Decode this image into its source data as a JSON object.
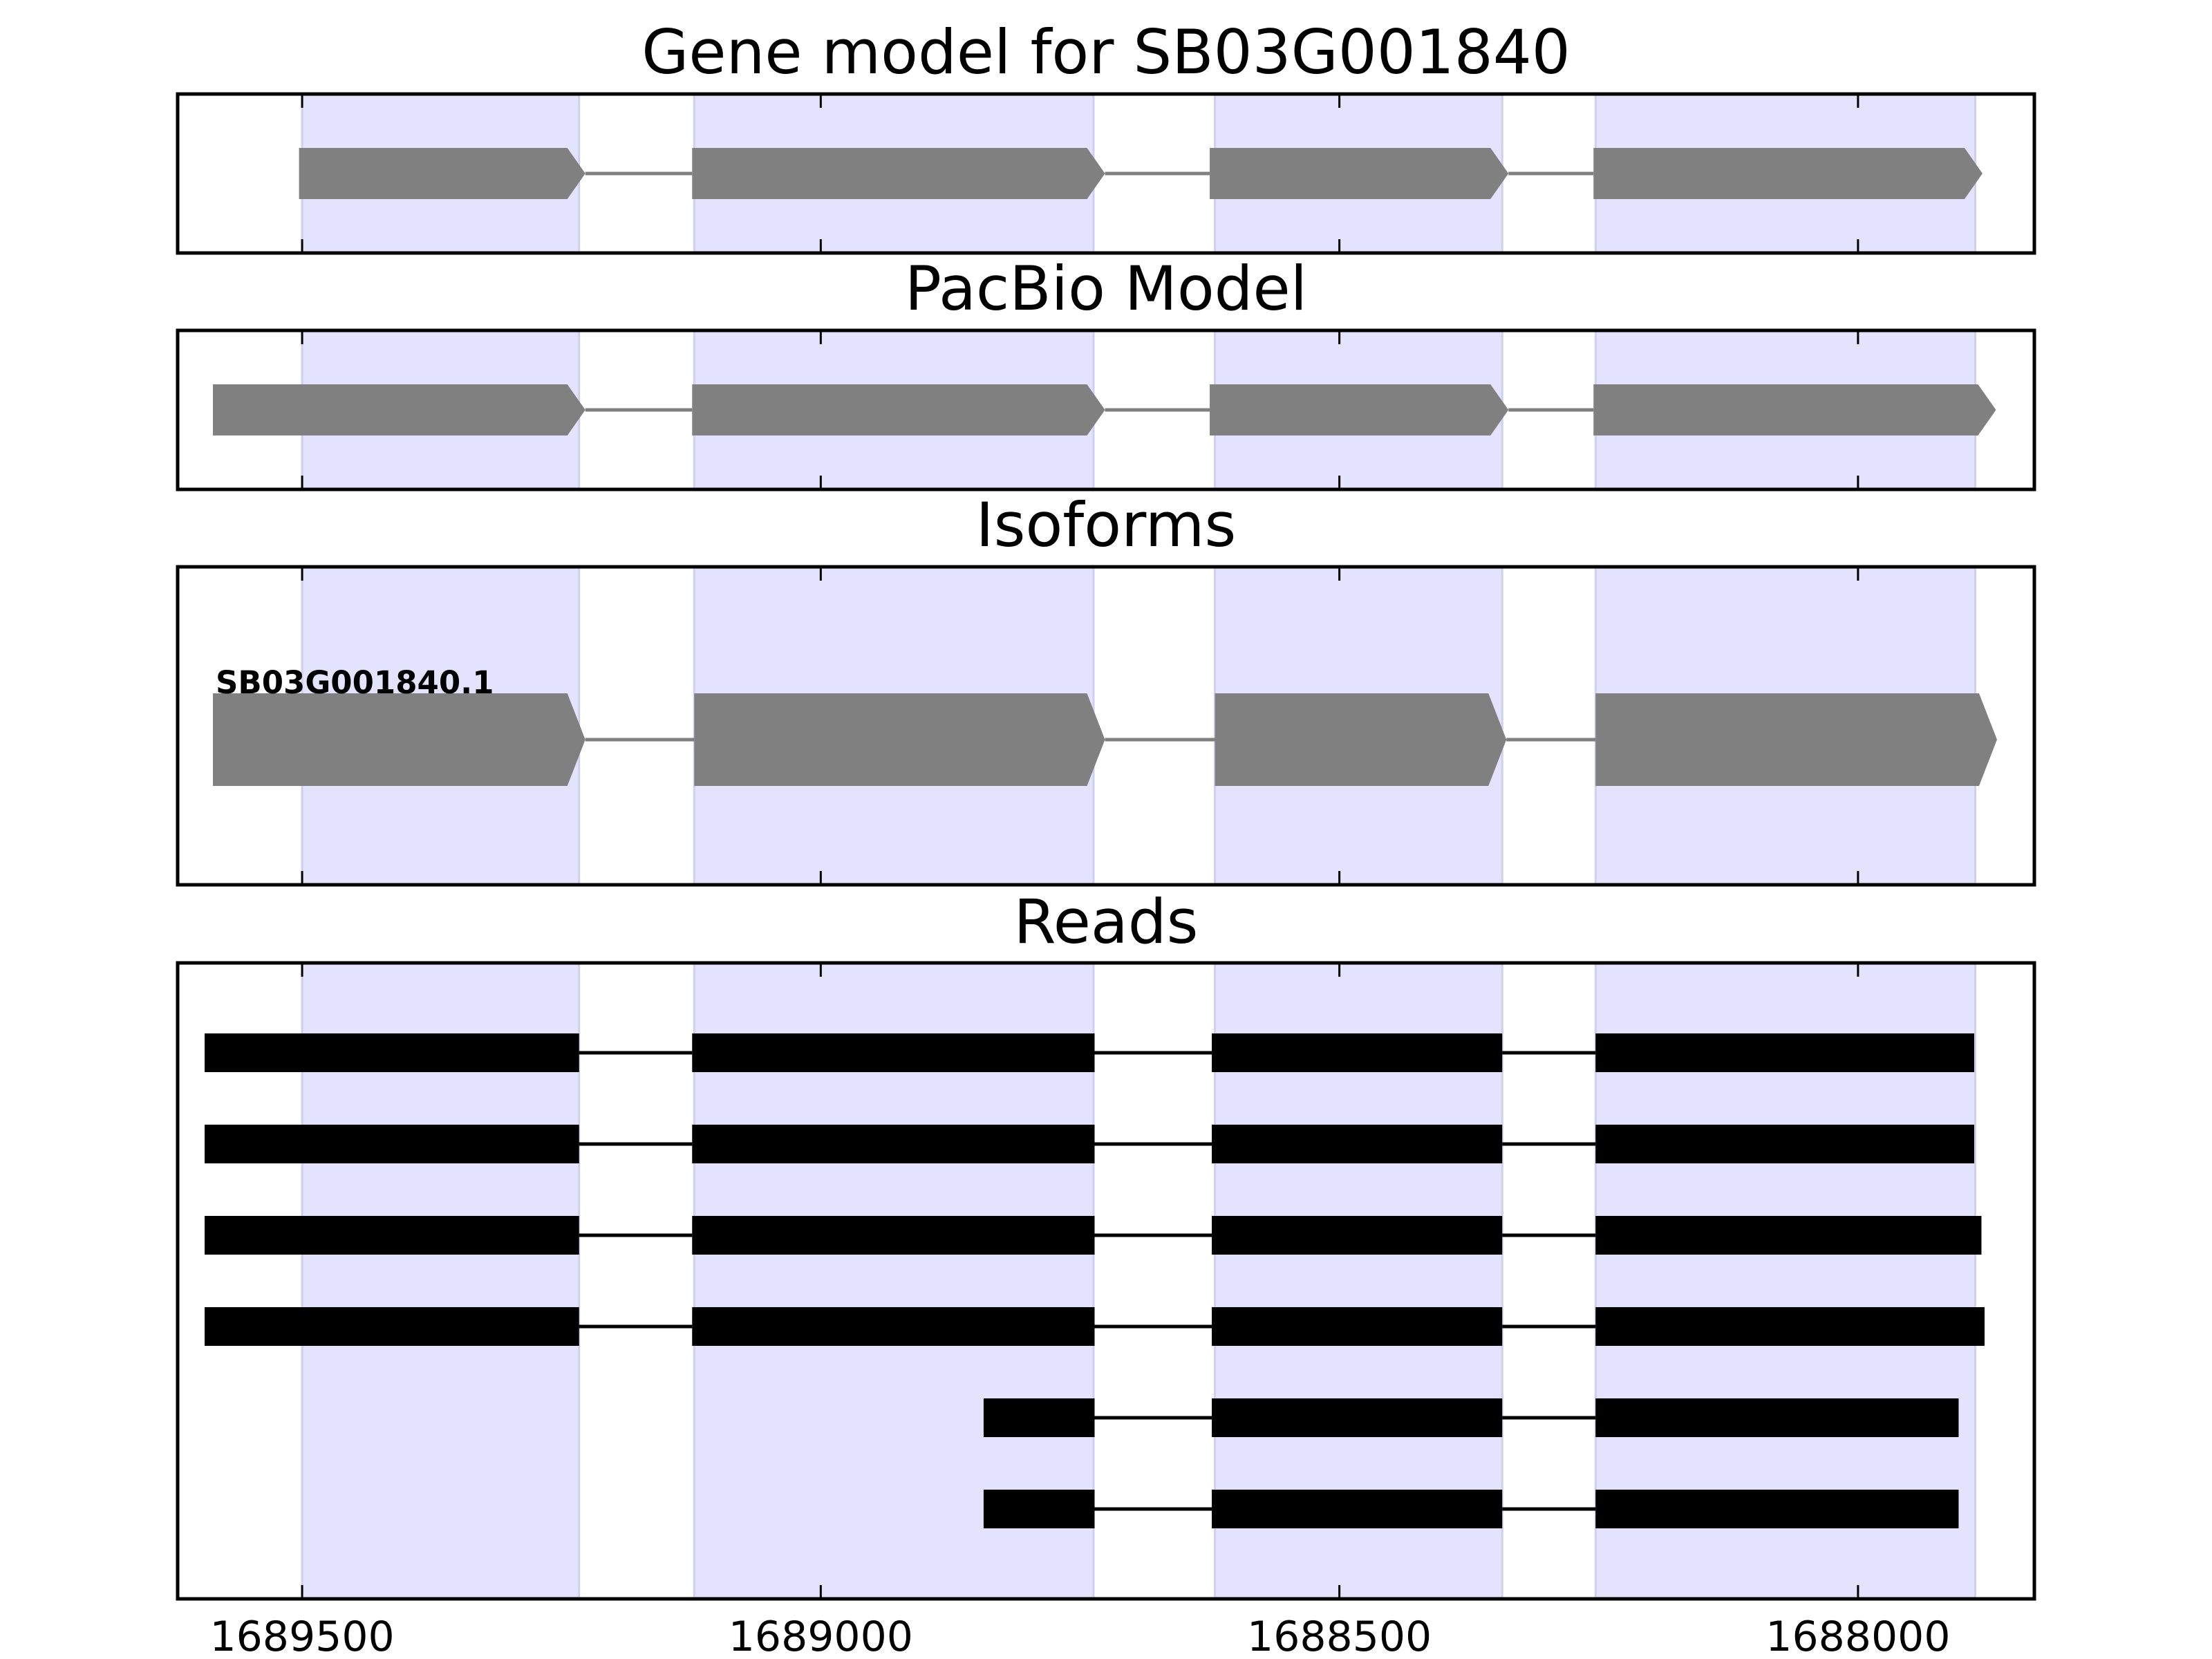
{
  "chart_data": {
    "type": "gene-structure",
    "x_axis": {
      "inverted": true,
      "range": [
        1689620,
        1687830
      ],
      "ticks": [
        1689500,
        1689000,
        1688500,
        1688000
      ],
      "tick_labels": [
        "1689500",
        "1689000",
        "1688500",
        "1688000"
      ]
    },
    "exon_regions": [
      [
        1689500,
        1689233
      ],
      [
        1689122,
        1688737
      ],
      [
        1688620,
        1688343
      ],
      [
        1688253,
        1687887
      ]
    ],
    "colors": {
      "highlight": "#e3e3fd",
      "highlight_edge": "#cfcff0",
      "model": "#808080",
      "read": "#000000",
      "frame": "#000000"
    },
    "panels": [
      {
        "key": "gene_model",
        "title": "Gene model for SB03G001840",
        "exons": [
          [
            1689503,
            1689227
          ],
          [
            1689124,
            1688726
          ],
          [
            1688625,
            1688337
          ],
          [
            1688255,
            1687880
          ]
        ]
      },
      {
        "key": "pacbio",
        "title": "PacBio Model",
        "exons": [
          [
            1689586,
            1689227
          ],
          [
            1689124,
            1688726
          ],
          [
            1688625,
            1688337
          ],
          [
            1688255,
            1687867
          ]
        ]
      },
      {
        "key": "isoforms",
        "title": "Isoforms",
        "isoform_label": "SB03G001840.1",
        "exons": [
          [
            1689586,
            1689227
          ],
          [
            1689122,
            1688726
          ],
          [
            1688620,
            1688339
          ],
          [
            1688253,
            1687866
          ]
        ]
      },
      {
        "key": "reads",
        "title": "Reads",
        "reads": [
          [
            [
              1689594,
              1689233
            ],
            [
              1689124,
              1688736
            ],
            [
              1688623,
              1688343
            ],
            [
              1688253,
              1687888
            ]
          ],
          [
            [
              1689594,
              1689233
            ],
            [
              1689124,
              1688736
            ],
            [
              1688623,
              1688343
            ],
            [
              1688253,
              1687888
            ]
          ],
          [
            [
              1689594,
              1689233
            ],
            [
              1689124,
              1688736
            ],
            [
              1688623,
              1688343
            ],
            [
              1688253,
              1687881
            ]
          ],
          [
            [
              1689594,
              1689233
            ],
            [
              1689124,
              1688736
            ],
            [
              1688623,
              1688343
            ],
            [
              1688253,
              1687878
            ]
          ],
          [
            [
              1688843,
              1688736
            ],
            [
              1688623,
              1688343
            ],
            [
              1688253,
              1687903
            ]
          ],
          [
            [
              1688843,
              1688736
            ],
            [
              1688623,
              1688343
            ],
            [
              1688253,
              1687903
            ]
          ]
        ]
      }
    ]
  }
}
